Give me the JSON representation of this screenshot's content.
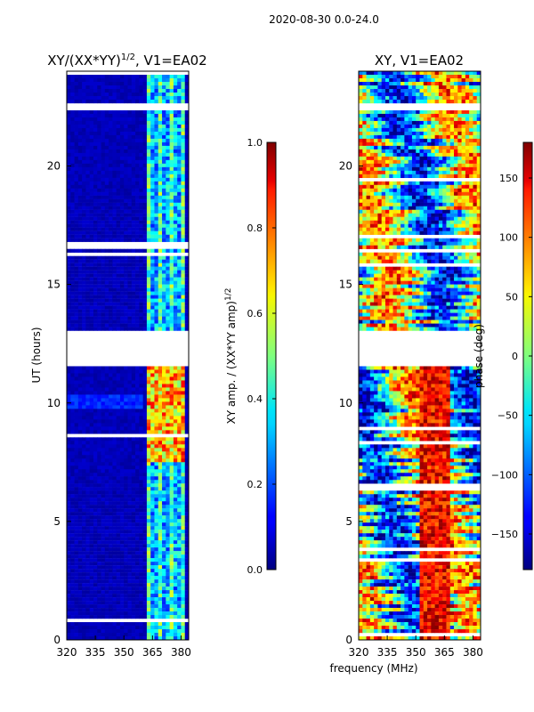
{
  "figure": {
    "suptitle": "2020-08-30 0.0-24.0",
    "shared_xlabel": "frequency (MHz)"
  },
  "chart_data": [
    {
      "type": "heatmap",
      "title_main": "XY/(XX*YY)",
      "title_sup": "1/2",
      "title_tail": ", V1=EA02",
      "xlabel": "",
      "ylabel": "UT (hours)",
      "xlim": [
        320,
        384
      ],
      "ylim": [
        0,
        24
      ],
      "xticks": [
        320,
        335,
        350,
        365,
        380
      ],
      "yticks": [
        0,
        5,
        10,
        15,
        20
      ],
      "colorbar": {
        "label_main": "XY amp. / (XX*YY amp)",
        "label_sup": "1/2",
        "vmin": 0.0,
        "vmax": 1.0,
        "ticks": [
          "0.0",
          "0.2",
          "0.4",
          "0.6",
          "0.8",
          "1.0"
        ],
        "tick_values": [
          0.0,
          0.2,
          0.4,
          0.6,
          0.8,
          1.0
        ]
      },
      "flagged_gap_hours": [
        [
          11.6,
          13.0
        ],
        [
          22.4,
          22.6
        ]
      ]
    },
    {
      "type": "heatmap",
      "title_main": "XY, V1=EA02",
      "xlabel": "",
      "ylabel": "",
      "xlim": [
        320,
        384
      ],
      "ylim": [
        0,
        24
      ],
      "xticks": [
        320,
        335,
        350,
        365,
        380
      ],
      "yticks": [
        0,
        5,
        10,
        15,
        20
      ],
      "colorbar": {
        "label_main": "phase (deg)",
        "vmin": -180,
        "vmax": 180,
        "ticks": [
          "−150",
          "−100",
          "−50",
          "0",
          "50",
          "100",
          "150"
        ],
        "tick_values": [
          -150,
          -100,
          -50,
          0,
          50,
          100,
          150
        ]
      },
      "flagged_gap_hours": [
        [
          11.6,
          13.0
        ],
        [
          22.4,
          22.6
        ]
      ]
    }
  ],
  "colors": {
    "jet_low": "#00007f",
    "jet_mid": "#7fff7f",
    "jet_high": "#7f0000"
  }
}
